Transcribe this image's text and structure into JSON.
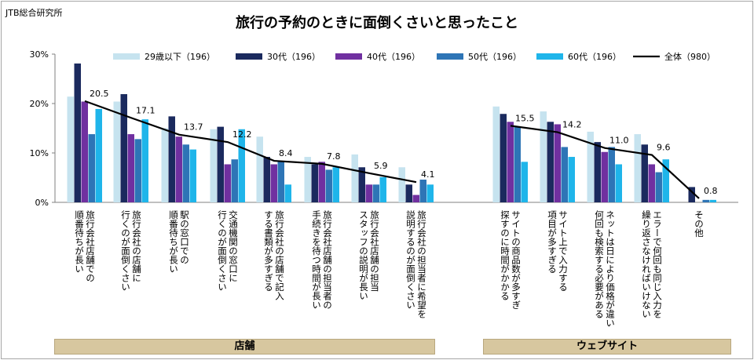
{
  "source": "JTB総合研究所",
  "chart_data": {
    "type": "bar",
    "title": "旅行の予約のときに面倒くさいと思ったこと",
    "ylim": [
      0,
      30
    ],
    "y_ticks": [
      "0%",
      "10%",
      "20%",
      "30%"
    ],
    "legend_position": "top",
    "groups": [
      {
        "label": "店舗",
        "categories": [
          0,
          7
        ]
      },
      {
        "label": "ウェブサイト",
        "categories": [
          8,
          12
        ]
      }
    ],
    "categories": [
      [
        "旅行会社店舗での",
        "順番待ちが長い"
      ],
      [
        "旅行会社の店舗に",
        "行くのが面倒くさい"
      ],
      [
        "駅の窓口での",
        "順番待ちが長い"
      ],
      [
        "交通機関の窓口に",
        "行くのが面倒くさい"
      ],
      [
        "旅行会社の店舗で記入",
        "する書類が多すぎる"
      ],
      [
        "旅行会社店舗の担当者の",
        "手続きを待つ時間が長い"
      ],
      [
        "旅行会社店舗の担当",
        "スタッフの説明が長い"
      ],
      [
        "旅行会社の担当者に希望を",
        "説明するのが面倒くさい"
      ],
      [
        "サイトの商品数が多すぎ",
        "探すのに時間がかかる"
      ],
      [
        "サイト上で入力する",
        "項目が多すぎる"
      ],
      [
        "ネットは日により価格が違い",
        "何回も検索する必要がある"
      ],
      [
        "エラーで何回も同じ入力を",
        "繰り返さなければいけない"
      ],
      [
        "その他",
        ""
      ]
    ],
    "series": [
      {
        "name": "29歳以下（196）",
        "color": "#c6e3ef",
        "values": [
          21.4,
          20.4,
          15.0,
          14.8,
          13.3,
          9.2,
          9.7,
          7.1,
          19.4,
          18.4,
          14.3,
          13.8,
          0.0
        ]
      },
      {
        "name": "30代（196）",
        "color": "#1b2a5e",
        "values": [
          28.1,
          21.9,
          17.4,
          15.3,
          9.2,
          7.7,
          7.1,
          3.6,
          17.9,
          16.3,
          12.2,
          11.7,
          3.1
        ]
      },
      {
        "name": "40代（196）",
        "color": "#7030a0",
        "values": [
          20.4,
          13.8,
          13.3,
          7.7,
          7.7,
          8.2,
          3.6,
          1.5,
          16.3,
          15.8,
          10.2,
          7.7,
          0.0
        ]
      },
      {
        "name": "50代（196）",
        "color": "#2e75b6",
        "values": [
          13.8,
          12.8,
          11.7,
          8.7,
          8.2,
          6.6,
          3.6,
          4.6,
          15.3,
          11.2,
          11.2,
          6.1,
          0.5
        ]
      },
      {
        "name": "60代（196）",
        "color": "#1fb5ea",
        "values": [
          18.9,
          16.8,
          10.7,
          14.8,
          3.6,
          7.1,
          5.1,
          3.6,
          8.2,
          9.2,
          7.7,
          8.7,
          0.5
        ]
      }
    ],
    "total": {
      "name": "全体（980）",
      "color": "#000000",
      "values": [
        20.5,
        17.1,
        13.7,
        12.2,
        8.4,
        7.8,
        5.9,
        4.1,
        15.5,
        14.2,
        11.0,
        9.6,
        0.8
      ],
      "labels": [
        "20.5",
        "17.1",
        "13.7",
        "12.2",
        "8.4",
        "7.8",
        "5.9",
        "4.1",
        "15.5",
        "14.2",
        "11.0",
        "9.6",
        "0.8"
      ]
    }
  }
}
